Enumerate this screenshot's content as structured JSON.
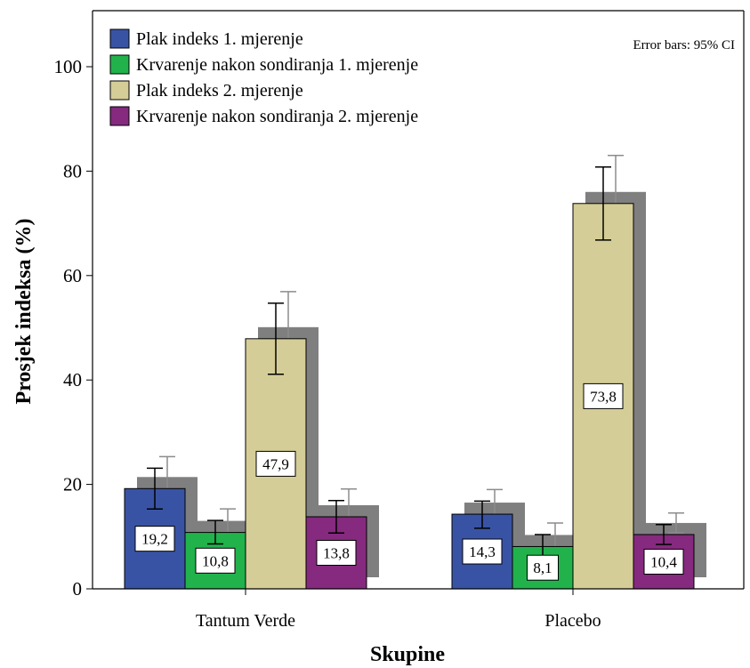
{
  "chart_data": {
    "type": "bar",
    "xlabel": "Skupine",
    "ylabel": "Prosjek indeksa (%)",
    "ylim": [
      0,
      108
    ],
    "yticks": [
      0,
      20,
      40,
      60,
      80,
      100
    ],
    "categories": [
      "Tantum Verde",
      "Placebo"
    ],
    "note": "Error bars: 95% CI",
    "legend_position": "top-left",
    "grid": false,
    "series": [
      {
        "name": "Plak indeks 1. mjerenje",
        "color": "#3953a4",
        "values": [
          19.2,
          14.3
        ],
        "value_labels": [
          "19,2",
          "14,3"
        ],
        "ci_low": [
          15.3,
          11.6
        ],
        "ci_high": [
          23.1,
          16.8
        ]
      },
      {
        "name": "Krvarenje nakon sondiranja 1. mjerenje",
        "color": "#22b24c",
        "values": [
          10.8,
          8.1
        ],
        "value_labels": [
          "10,8",
          "8,1"
        ],
        "ci_low": [
          8.6,
          5.7
        ],
        "ci_high": [
          13.1,
          10.4
        ]
      },
      {
        "name": "Plak indeks 2. mjerenje",
        "color": "#d4cd97",
        "values": [
          47.9,
          73.8
        ],
        "value_labels": [
          "47,9",
          "73,8"
        ],
        "ci_low": [
          41.1,
          66.8
        ],
        "ci_high": [
          54.7,
          80.8
        ]
      },
      {
        "name": "Krvarenje nakon sondiranja 2. mjerenje",
        "color": "#852a7e",
        "values": [
          13.8,
          10.4
        ],
        "value_labels": [
          "13,8",
          "10,4"
        ],
        "ci_low": [
          10.7,
          8.5
        ],
        "ci_high": [
          16.9,
          12.3
        ]
      }
    ]
  }
}
